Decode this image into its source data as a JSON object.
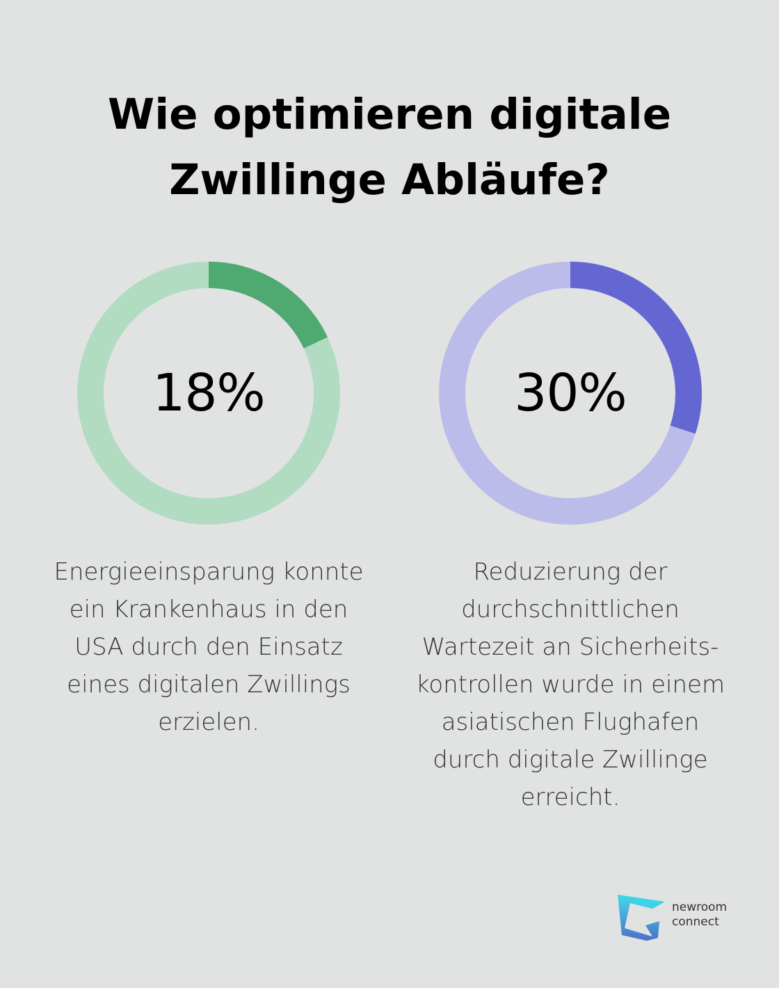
{
  "title": {
    "line1": "Wie optimieren digitale",
    "line2": "Zwillinge Abläufe?"
  },
  "chart_data": [
    {
      "type": "pie",
      "value": 18,
      "label": "18%",
      "colors": {
        "filled": "#4eaa70",
        "track": "#b1dcc1"
      },
      "description_lines": [
        "Energieeinsparung konnte",
        "ein Krankenhaus in den",
        "USA durch den Einsatz",
        "eines digitalen Zwillings",
        "erzielen."
      ]
    },
    {
      "type": "pie",
      "value": 30,
      "label": "30%",
      "colors": {
        "filled": "#6467d2",
        "track": "#bbbcea"
      },
      "description_lines": [
        "Reduzierung der",
        "durchschnittlichen",
        "Wartezeit an Sicherheits-",
        "kontrollen wurde in einem",
        "asiatischen Flughafen",
        "durch digitale Zwillinge",
        "erreicht."
      ]
    }
  ],
  "logo": {
    "line1": "newroom",
    "line2": "connect",
    "icon": "newroom-connect-logo-icon",
    "colors": {
      "top": "#3ad6e8",
      "bottom": "#3d68c9"
    }
  }
}
